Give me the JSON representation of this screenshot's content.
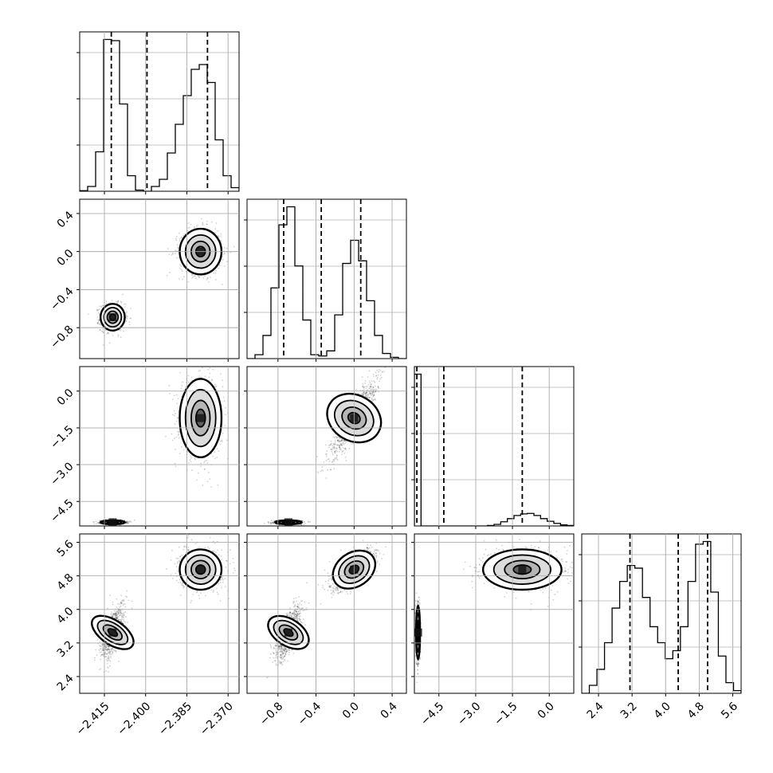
{
  "chart_data": {
    "type": "corner",
    "parameter_count": 4,
    "grid": true,
    "colors": {
      "line": "#000000",
      "grid": "#b0b0b0",
      "density": "#000000",
      "background": "#ffffff"
    },
    "parameters": [
      {
        "range": [
          -2.424,
          -2.366
        ],
        "ticks": [
          -2.415,
          -2.4,
          -2.385,
          -2.37
        ],
        "tick_labels": [
          "−2.415",
          "−2.400",
          "−2.385",
          "−2.370"
        ],
        "quantiles": [
          -2.4125,
          -2.3995,
          -2.3775
        ],
        "hist": [
          0.5,
          4,
          33,
          127,
          126,
          73,
          13,
          1,
          0,
          4,
          10,
          32,
          56,
          80,
          102,
          106,
          91,
          43,
          13,
          3
        ]
      },
      {
        "range": [
          -1.125,
          0.55
        ],
        "ticks": [
          -0.8,
          -0.4,
          0.0,
          0.4
        ],
        "tick_labels": [
          "−0.8",
          "−0.4",
          "0.0",
          "0.4"
        ],
        "quantiles": [
          -0.74,
          -0.345,
          0.07
        ],
        "hist": [
          0,
          3,
          18,
          55,
          104,
          118,
          72,
          30,
          3,
          2,
          6,
          34,
          74,
          92,
          76,
          45,
          18,
          4,
          1,
          0
        ]
      },
      {
        "range": [
          -5.5,
          1.0
        ],
        "ticks": [
          -4.5,
          -3.0,
          -1.5,
          0.0
        ],
        "tick_labels": [
          "−4.5",
          "−3.0",
          "−1.5",
          "0.0"
        ],
        "quantiles": [
          -5.4,
          -4.3,
          -1.1
        ],
        "hist": [
          290,
          0,
          0,
          0,
          0,
          0,
          0,
          0,
          0,
          0,
          0,
          1,
          3,
          8,
          14,
          20,
          23,
          24,
          20,
          14,
          9,
          5,
          2,
          1
        ]
      },
      {
        "range": [
          2.0,
          5.8
        ],
        "ticks": [
          2.4,
          3.2,
          4.0,
          4.8,
          5.6
        ],
        "tick_labels": [
          "2.4",
          "3.2",
          "4.0",
          "4.8",
          "5.6"
        ],
        "quantiles": [
          3.15,
          4.3,
          5.0
        ],
        "hist": [
          0,
          3,
          9,
          19,
          32,
          42,
          48,
          47,
          36,
          25,
          19,
          13,
          16,
          25,
          42,
          56,
          57,
          38,
          14,
          4,
          1
        ]
      }
    ],
    "modes": [
      {
        "weight": 0.5,
        "mean": [
          -2.412,
          -0.69,
          -5.35,
          3.45
        ],
        "sd": [
          0.0022,
          0.07,
          0.04,
          0.32
        ],
        "corr_23": 0.0,
        "corr_14": 0.6
      },
      {
        "weight": 0.5,
        "mean": [
          -2.38,
          0.0,
          -1.1,
          4.95
        ],
        "sd": [
          0.0038,
          0.12,
          0.8,
          0.24
        ],
        "corr_23": 0.9,
        "corr_14": 0.0
      }
    ]
  }
}
